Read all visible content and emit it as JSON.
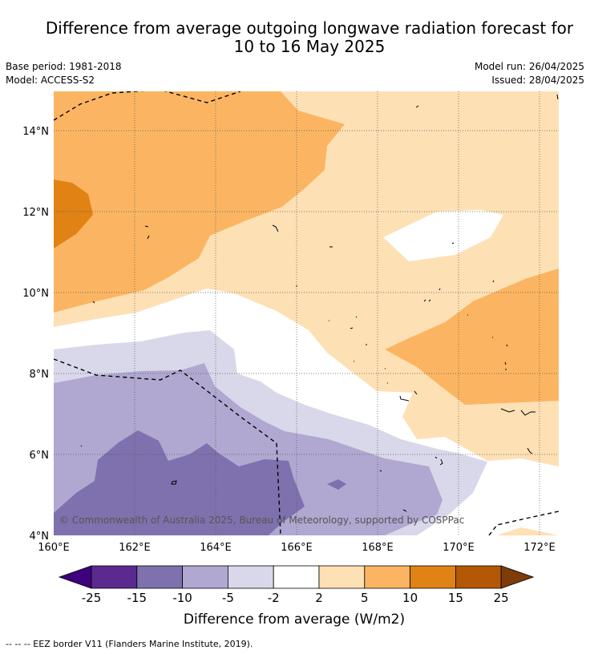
{
  "title_line1": "Difference from average outgoing longwave radiation forecast for",
  "title_line2": "10 to 16 May 2025",
  "base_period": "Base period: 1981-2018",
  "model": "Model: ACCESS-S2",
  "model_run": "Model run: 26/04/2025",
  "issued": "Issued: 28/04/2025",
  "copyright": "© Commonwealth of Australia 2025, Bureau of Meteorology, supported by COSPPac",
  "lat_labels": [
    "14°N",
    "12°N",
    "10°N",
    "8°N",
    "6°N",
    "4°N"
  ],
  "lon_labels": [
    "160°E",
    "162°E",
    "164°E",
    "166°E",
    "168°E",
    "170°E",
    "172°E"
  ],
  "colorbar": {
    "ticks": [
      "-25",
      "-15",
      "-10",
      "-5",
      "-2",
      "2",
      "5",
      "10",
      "15",
      "25"
    ],
    "colors": [
      "#3f007d",
      "#5a2a8e",
      "#7f71ad",
      "#b0a8d0",
      "#d9d8ea",
      "#ffffff",
      "#fee0b5",
      "#fbb562",
      "#e08214",
      "#b35806",
      "#7f3b08"
    ],
    "label": "Difference from average (W/m2)"
  },
  "footer": "--  --  -- EEZ border V11 (Flanders Marine Institute, 2019)."
}
